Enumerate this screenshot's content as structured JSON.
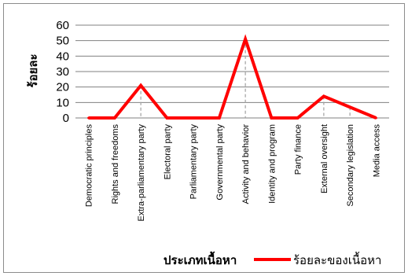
{
  "chart_data": {
    "type": "line",
    "categories": [
      "Democratic principles",
      "Rights and freedoms",
      "Extra-parliamentary party",
      "Electoral party",
      "Parliamentary party",
      "Governmental party",
      "Activity and behavior",
      "Identity and program",
      "Party finance",
      "External oversight",
      "Secondary legislation",
      "Media access"
    ],
    "series": [
      {
        "name": "ร้อยละของเนื้อหา",
        "values": [
          0,
          0,
          21,
          0,
          0,
          0,
          51,
          0,
          0,
          14,
          7,
          0
        ]
      }
    ],
    "ylabel": "ร้อยละ",
    "xlabel": "ประเภทเนื้อหา",
    "ylim": [
      0,
      60
    ],
    "yticks": [
      "0",
      "10",
      "20",
      "30",
      "40",
      "50",
      "60"
    ],
    "grid": true,
    "drop_lines": true,
    "legend_position": "bottom-right",
    "colors": {
      "series": "#ff0000",
      "grid": "#808080",
      "drop_line": "#a0a0a0"
    }
  }
}
